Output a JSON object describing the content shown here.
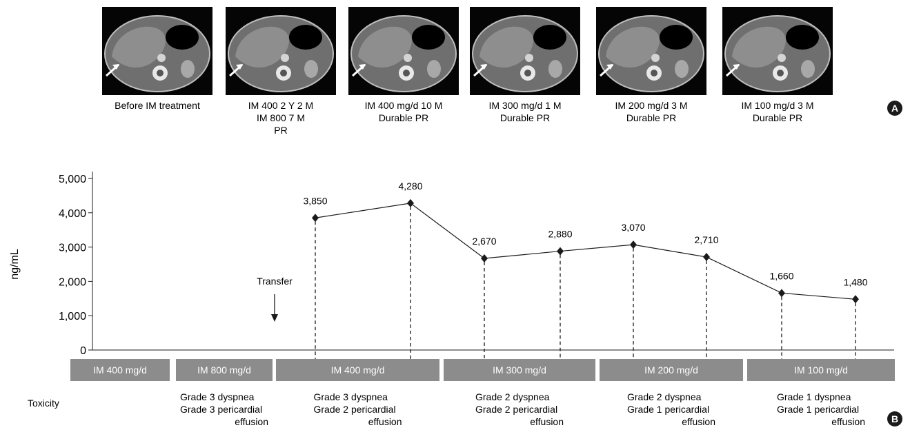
{
  "panel_a": {
    "label": "A",
    "scans": [
      {
        "caption": [
          "Before IM treatment"
        ]
      },
      {
        "caption": [
          "IM 400 2 Y 2 M",
          "IM 800 7 M",
          "PR"
        ]
      },
      {
        "caption": [
          "IM 400 mg/d 10 M",
          "Durable PR"
        ]
      },
      {
        "caption": [
          "IM 300 mg/d 1 M",
          "Durable PR"
        ]
      },
      {
        "caption": [
          "IM 200 mg/d 3 M",
          "Durable PR"
        ]
      },
      {
        "caption": [
          "IM 100 mg/d 3 M",
          "Durable PR"
        ]
      }
    ]
  },
  "panel_b": {
    "label": "B",
    "annotation": "Transfer",
    "toxicity_label": "Toxicity",
    "dose_bars": [
      "IM 400 mg/d",
      "IM 800 mg/d",
      "IM 400 mg/d",
      "IM 300 mg/d",
      "IM 200 mg/d",
      "IM 100 mg/d"
    ],
    "toxicity": [
      [],
      [
        "Grade 3 dyspnea",
        "Grade 3 pericardial",
        "effusion"
      ],
      [
        "Grade 3 dyspnea",
        "Grade 2 pericardial",
        "effusion"
      ],
      [
        "Grade 2 dyspnea",
        "Grade 2 pericardial",
        "effusion"
      ],
      [
        "Grade 2 dyspnea",
        "Grade 1 pericardial",
        "effusion"
      ],
      [
        "Grade 1 dyspnea",
        "Grade 1 pericardial",
        "effusion"
      ]
    ]
  },
  "chart_data": {
    "type": "line",
    "title": "",
    "xlabel": "",
    "ylabel": "ng/mL",
    "ylim": [
      0,
      5000
    ],
    "yticks": [
      "0",
      "1,000",
      "2,000",
      "3,000",
      "4,000",
      "5,000"
    ],
    "grid": false,
    "series": [
      {
        "values": [
          3850,
          4280,
          2670,
          2880,
          3070,
          2710,
          1660,
          1480
        ],
        "labels": [
          "3,850",
          "4,280",
          "2,670",
          "2,880",
          "3,070",
          "2,710",
          "1,660",
          "1,480"
        ]
      }
    ],
    "marker": "diamond",
    "colors": {
      "line": "#1a1a1a",
      "bar": "#8c8c8c"
    }
  }
}
